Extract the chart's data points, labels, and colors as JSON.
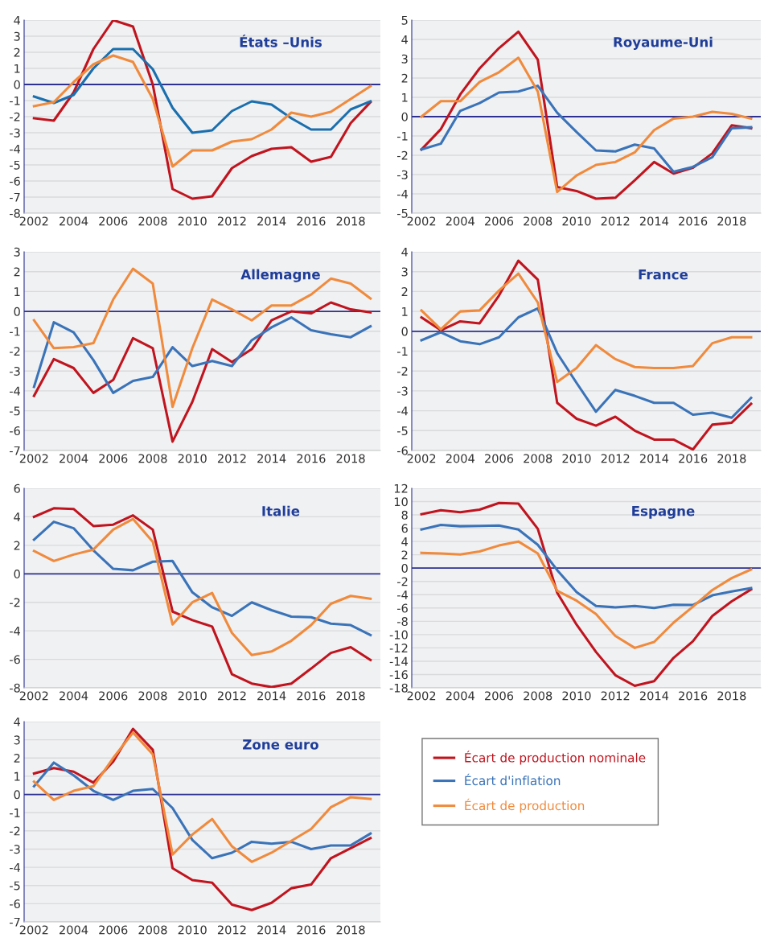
{
  "chart_data": [
    {
      "type": "line",
      "title": "États –Unis",
      "x": [
        2002,
        2003,
        2004,
        2005,
        2006,
        2007,
        2008,
        2009,
        2010,
        2011,
        2012,
        2013,
        2014,
        2015,
        2016,
        2017,
        2018,
        2019
      ],
      "xlim": [
        2001.5,
        2019.5
      ],
      "xticks": [
        2002,
        2004,
        2006,
        2008,
        2010,
        2012,
        2014,
        2016,
        2018
      ],
      "ylim": [
        -8,
        4
      ],
      "yticks": [
        -8,
        -7,
        -6,
        -5,
        -4,
        -3,
        -2,
        -1,
        0,
        1,
        2,
        3,
        4
      ],
      "grid": "y",
      "ref_lines": [
        {
          "axis": "y",
          "value": 0,
          "color": "#2e3192"
        }
      ],
      "series": [
        {
          "color": "#c0141e",
          "values": [
            -2.1,
            -2.25,
            -0.5,
            2.2,
            4.0,
            3.6,
            0.0,
            -6.5,
            -7.1,
            -6.95,
            -5.2,
            -4.45,
            -4.0,
            -3.9,
            -4.8,
            -4.5,
            -2.4,
            -1.1
          ]
        },
        {
          "color": "#1a6fae",
          "values": [
            -0.75,
            -1.15,
            -0.65,
            1.0,
            2.2,
            2.2,
            0.95,
            -1.45,
            -3.0,
            -2.85,
            -1.65,
            -1.05,
            -1.25,
            -2.1,
            -2.8,
            -2.8,
            -1.55,
            -1.05
          ]
        },
        {
          "color": "#f08a3c",
          "values": [
            -1.35,
            -1.1,
            0.15,
            1.25,
            1.8,
            1.4,
            -0.9,
            -5.1,
            -4.1,
            -4.1,
            -3.55,
            -3.4,
            -2.8,
            -1.75,
            -2.0,
            -1.7,
            -0.9,
            -0.1
          ]
        }
      ]
    },
    {
      "type": "line",
      "title": "Royaume-Uni",
      "x": [
        2002,
        2003,
        2004,
        2005,
        2006,
        2007,
        2008,
        2009,
        2010,
        2011,
        2012,
        2013,
        2014,
        2015,
        2016,
        2017,
        2018,
        2019
      ],
      "xlim": [
        2001.5,
        2019.5
      ],
      "xticks": [
        2002,
        2004,
        2006,
        2008,
        2010,
        2012,
        2014,
        2016,
        2018
      ],
      "ylim": [
        -5,
        5
      ],
      "yticks": [
        -5,
        -4,
        -3,
        -2,
        -1,
        0,
        1,
        2,
        3,
        4,
        5
      ],
      "grid": "y",
      "ref_lines": [
        {
          "axis": "y",
          "value": 0,
          "color": "#2e3192"
        }
      ],
      "series": [
        {
          "color": "#c0141e",
          "values": [
            -1.7,
            -0.65,
            1.15,
            2.5,
            3.55,
            4.4,
            2.95,
            -3.65,
            -3.85,
            -4.25,
            -4.2,
            -3.3,
            -2.35,
            -2.95,
            -2.65,
            -1.9,
            -0.45,
            -0.6
          ]
        },
        {
          "color": "#3a73b8",
          "values": [
            -1.7,
            -1.4,
            0.3,
            0.7,
            1.25,
            1.3,
            1.6,
            0.2,
            -0.8,
            -1.75,
            -1.8,
            -1.45,
            -1.65,
            -2.85,
            -2.6,
            -2.1,
            -0.6,
            -0.55
          ]
        },
        {
          "color": "#f08a3c",
          "values": [
            0.0,
            0.8,
            0.8,
            1.8,
            2.3,
            3.05,
            1.3,
            -3.9,
            -3.05,
            -2.5,
            -2.35,
            -1.85,
            -0.7,
            -0.1,
            0.0,
            0.25,
            0.15,
            -0.1
          ]
        }
      ]
    },
    {
      "type": "line",
      "title": "Allemagne",
      "x": [
        2002,
        2003,
        2004,
        2005,
        2006,
        2007,
        2008,
        2009,
        2010,
        2011,
        2012,
        2013,
        2014,
        2015,
        2016,
        2017,
        2018,
        2019
      ],
      "xlim": [
        2001.5,
        2019.5
      ],
      "xticks": [
        2002,
        2004,
        2006,
        2008,
        2010,
        2012,
        2014,
        2016,
        2018
      ],
      "ylim": [
        -7,
        3
      ],
      "yticks": [
        -7,
        -6,
        -5,
        -4,
        -3,
        -2,
        -1,
        0,
        1,
        2,
        3
      ],
      "grid": "y",
      "ref_lines": [
        {
          "axis": "y",
          "value": 0,
          "color": "#2e3192"
        }
      ],
      "series": [
        {
          "color": "#c0141e",
          "values": [
            -4.25,
            -2.4,
            -2.85,
            -4.1,
            -3.45,
            -1.35,
            -1.85,
            -6.55,
            -4.55,
            -1.9,
            -2.55,
            -1.9,
            -0.45,
            0.0,
            -0.1,
            0.45,
            0.1,
            -0.05
          ]
        },
        {
          "color": "#3a73b8",
          "values": [
            -3.8,
            -0.55,
            -1.05,
            -2.45,
            -4.1,
            -3.5,
            -3.3,
            -1.8,
            -2.75,
            -2.5,
            -2.75,
            -1.45,
            -0.8,
            -0.3,
            -0.95,
            -1.15,
            -1.3,
            -0.75
          ]
        },
        {
          "color": "#f08a3c",
          "values": [
            -0.45,
            -1.85,
            -1.8,
            -1.6,
            0.6,
            2.15,
            1.4,
            -4.8,
            -1.85,
            0.6,
            0.1,
            -0.45,
            0.3,
            0.3,
            0.85,
            1.65,
            1.4,
            0.65
          ]
        }
      ]
    },
    {
      "type": "line",
      "title": "France",
      "x": [
        2002,
        2003,
        2004,
        2005,
        2006,
        2007,
        2008,
        2009,
        2010,
        2011,
        2012,
        2013,
        2014,
        2015,
        2016,
        2017,
        2018,
        2019
      ],
      "xlim": [
        2001.5,
        2019.5
      ],
      "xticks": [
        2002,
        2004,
        2006,
        2008,
        2010,
        2012,
        2014,
        2016,
        2018
      ],
      "ylim": [
        -6,
        4
      ],
      "yticks": [
        -6,
        -5,
        -4,
        -3,
        -2,
        -1,
        0,
        1,
        2,
        3,
        4
      ],
      "grid": "y",
      "ref_lines": [
        {
          "axis": "y",
          "value": 0,
          "color": "#2e3192"
        }
      ],
      "series": [
        {
          "color": "#c0141e",
          "values": [
            0.7,
            0.05,
            0.5,
            0.4,
            1.8,
            3.55,
            2.6,
            -3.6,
            -4.4,
            -4.75,
            -4.3,
            -5.0,
            -5.45,
            -5.45,
            -5.95,
            -4.7,
            -4.6,
            -3.65
          ]
        },
        {
          "color": "#3a73b8",
          "values": [
            -0.45,
            -0.05,
            -0.5,
            -0.65,
            -0.3,
            0.7,
            1.15,
            -1.1,
            -2.6,
            -4.05,
            -2.95,
            -3.25,
            -3.6,
            -3.6,
            -4.2,
            -4.1,
            -4.35,
            -3.35
          ]
        },
        {
          "color": "#f08a3c",
          "values": [
            1.05,
            0.1,
            1.0,
            1.05,
            2.05,
            2.9,
            1.45,
            -2.55,
            -1.85,
            -0.7,
            -1.4,
            -1.8,
            -1.85,
            -1.85,
            -1.75,
            -0.6,
            -0.3,
            -0.3
          ]
        }
      ]
    },
    {
      "type": "line",
      "title": "Italie",
      "x": [
        2002,
        2003,
        2004,
        2005,
        2006,
        2007,
        2008,
        2009,
        2010,
        2011,
        2012,
        2013,
        2014,
        2015,
        2016,
        2017,
        2018,
        2019
      ],
      "xlim": [
        2001.5,
        2019.5
      ],
      "xticks": [
        2002,
        2004,
        2006,
        2008,
        2010,
        2012,
        2014,
        2016,
        2018
      ],
      "ylim": [
        -8,
        6
      ],
      "yticks": [
        -8,
        -6,
        -4,
        -2,
        0,
        2,
        4,
        6
      ],
      "grid": "y",
      "ref_lines": [
        {
          "axis": "y",
          "value": 0,
          "color": "#2e3192"
        }
      ],
      "series": [
        {
          "color": "#c0141e",
          "values": [
            4.0,
            4.6,
            4.55,
            3.35,
            3.45,
            4.1,
            3.1,
            -2.65,
            -3.25,
            -3.7,
            -7.05,
            -7.7,
            -7.95,
            -7.7,
            -6.65,
            -5.55,
            -5.15,
            -6.05
          ]
        },
        {
          "color": "#3a73b8",
          "values": [
            2.4,
            3.65,
            3.2,
            1.65,
            0.35,
            0.25,
            0.85,
            0.9,
            -1.3,
            -2.35,
            -2.95,
            -2.0,
            -2.55,
            -3.0,
            -3.05,
            -3.5,
            -3.6,
            -4.3
          ]
        },
        {
          "color": "#f08a3c",
          "values": [
            1.6,
            0.9,
            1.35,
            1.7,
            3.1,
            3.85,
            2.25,
            -3.55,
            -2.0,
            -1.35,
            -4.15,
            -5.7,
            -5.45,
            -4.7,
            -3.6,
            -2.1,
            -1.55,
            -1.75
          ]
        }
      ]
    },
    {
      "type": "line",
      "title": "Espagne",
      "x": [
        2002,
        2003,
        2004,
        2005,
        2006,
        2007,
        2008,
        2009,
        2010,
        2011,
        2012,
        2013,
        2014,
        2015,
        2016,
        2017,
        2018,
        2019
      ],
      "xlim": [
        2001.5,
        2019.5
      ],
      "xticks": [
        2002,
        2004,
        2006,
        2008,
        2010,
        2012,
        2014,
        2016,
        2018
      ],
      "ylim": [
        -18,
        12
      ],
      "yticks": [
        -18,
        -16,
        -14,
        -12,
        -10,
        -8,
        -6,
        -4,
        -2,
        0,
        2,
        4,
        6,
        8,
        10,
        12
      ],
      "grid": "y",
      "ref_lines": [
        {
          "axis": "y",
          "value": 0,
          "color": "#2e3192"
        }
      ],
      "series": [
        {
          "color": "#c0141e",
          "values": [
            8.1,
            8.7,
            8.4,
            8.8,
            9.8,
            9.7,
            5.9,
            -3.7,
            -8.5,
            -12.6,
            -16.1,
            -17.7,
            -17.0,
            -13.5,
            -11.0,
            -7.2,
            -5.0,
            -3.2
          ]
        },
        {
          "color": "#3a73b8",
          "values": [
            5.8,
            6.5,
            6.3,
            6.35,
            6.4,
            5.8,
            3.5,
            -0.3,
            -3.6,
            -5.7,
            -5.9,
            -5.7,
            -6.0,
            -5.5,
            -5.55,
            -4.1,
            -3.5,
            -3.0
          ]
        },
        {
          "color": "#f08a3c",
          "values": [
            2.3,
            2.2,
            2.05,
            2.5,
            3.4,
            4.0,
            2.2,
            -3.4,
            -4.9,
            -6.9,
            -10.2,
            -12.0,
            -11.1,
            -8.2,
            -5.8,
            -3.3,
            -1.5,
            -0.2
          ]
        }
      ]
    },
    {
      "type": "line",
      "title": "Zone euro",
      "x": [
        2002,
        2003,
        2004,
        2005,
        2006,
        2007,
        2008,
        2009,
        2010,
        2011,
        2012,
        2013,
        2014,
        2015,
        2016,
        2017,
        2018,
        2019
      ],
      "xlim": [
        2001.5,
        2019.5
      ],
      "xticks": [
        2002,
        2004,
        2006,
        2008,
        2010,
        2012,
        2014,
        2016,
        2018
      ],
      "ylim": [
        -7,
        4
      ],
      "yticks": [
        -7,
        -6,
        -5,
        -4,
        -3,
        -2,
        -1,
        0,
        1,
        2,
        3,
        4
      ],
      "grid": "y",
      "legend": "right",
      "ref_lines": [
        {
          "axis": "y",
          "value": 0,
          "color": "#2e3192"
        }
      ],
      "series": [
        {
          "name": "Écart de production nominale",
          "color": "#c0141e",
          "values": [
            1.15,
            1.45,
            1.25,
            0.65,
            1.8,
            3.6,
            2.45,
            -4.05,
            -4.7,
            -4.85,
            -6.05,
            -6.35,
            -5.95,
            -5.15,
            -4.95,
            -3.5,
            -2.95,
            -2.4
          ]
        },
        {
          "name": "Écart d'inflation",
          "color": "#3a73b8",
          "values": [
            0.45,
            1.75,
            1.05,
            0.2,
            -0.3,
            0.2,
            0.3,
            -0.75,
            -2.5,
            -3.5,
            -3.2,
            -2.6,
            -2.7,
            -2.6,
            -3.0,
            -2.8,
            -2.8,
            -2.15
          ]
        },
        {
          "name": "Écart de production",
          "color": "#f08a3c",
          "values": [
            0.7,
            -0.3,
            0.2,
            0.45,
            2.0,
            3.4,
            2.2,
            -3.3,
            -2.2,
            -1.35,
            -2.85,
            -3.7,
            -3.2,
            -2.55,
            -1.9,
            -0.7,
            -0.15,
            -0.25
          ]
        }
      ]
    }
  ]
}
